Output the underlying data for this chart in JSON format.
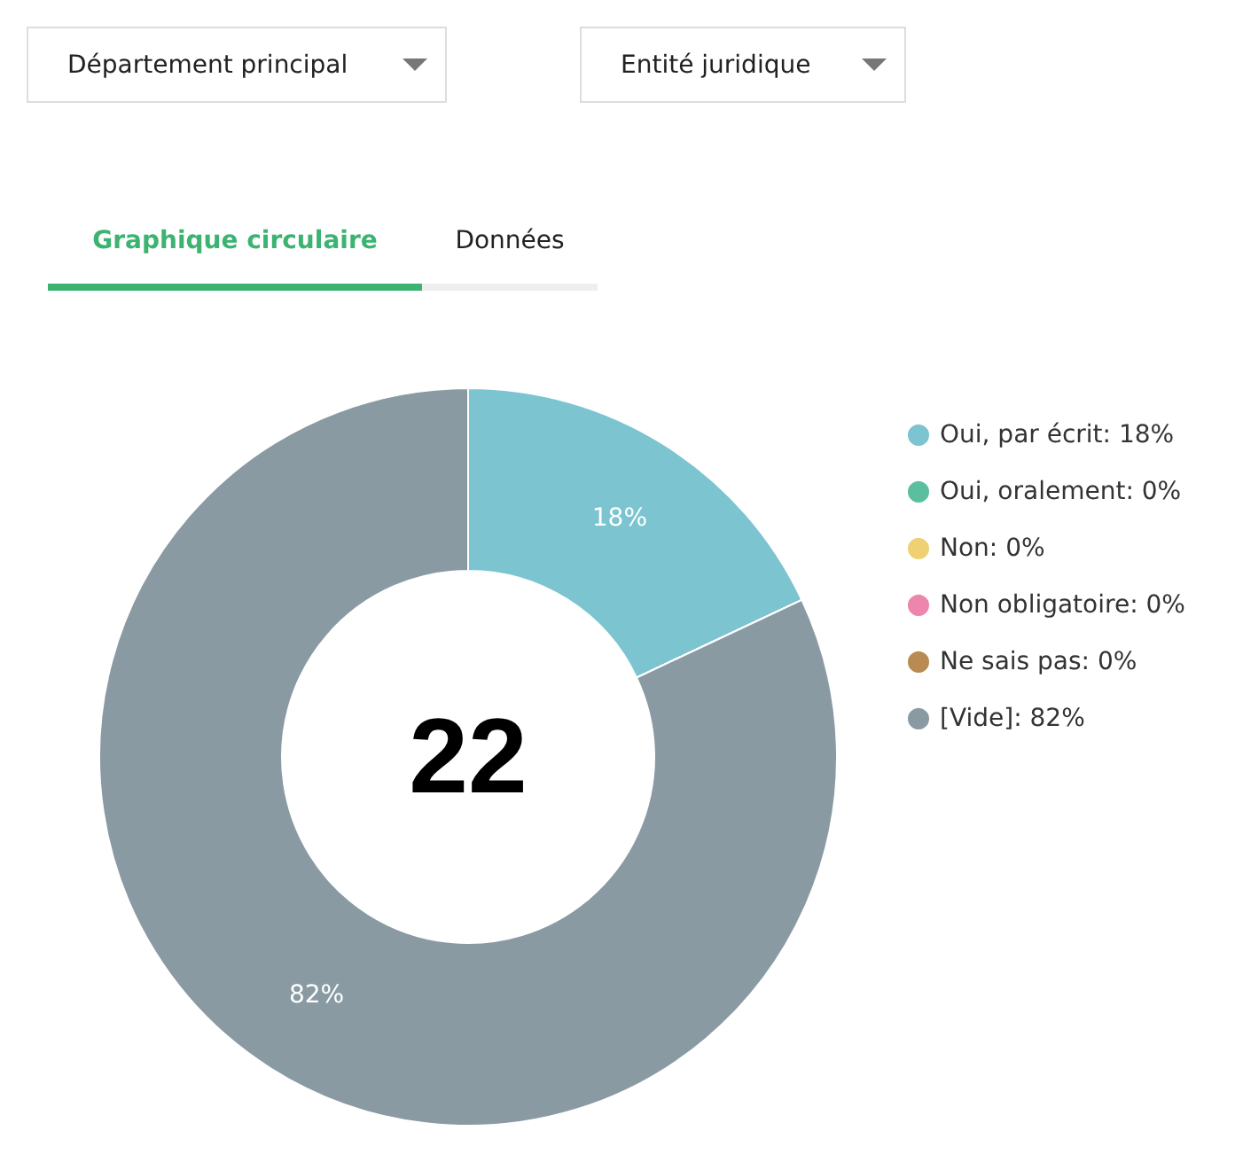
{
  "chart_data": {
    "type": "donut",
    "categories": [
      "Oui, par écrit",
      "Oui, oralement",
      "Non",
      "Non obligatoire",
      "Ne sais pas",
      "[Vide]"
    ],
    "values": [
      18,
      0,
      0,
      0,
      0,
      82
    ],
    "value_labels": [
      "18%",
      "0%",
      "0%",
      "0%",
      "0%",
      "82%"
    ],
    "colors": [
      "#7bc4d0",
      "#5bbf9f",
      "#efd174",
      "#ec86ad",
      "#b98a52",
      "#8a9aa3"
    ],
    "legend": "right",
    "annotations": [
      "Département principal",
      "Entité juridique",
      "Graphique circulaire",
      "Données",
      "22"
    ]
  }
}
